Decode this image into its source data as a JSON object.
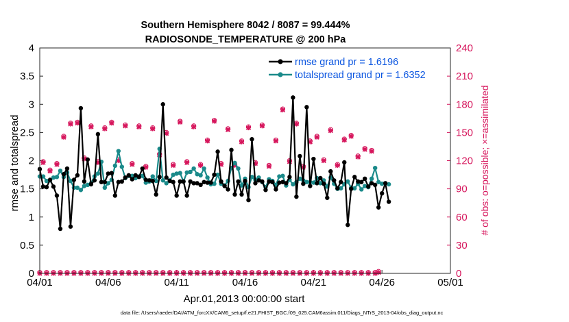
{
  "chart_data": {
    "type": "line",
    "title_line1": "Southern Hemisphere 8042 / 8087 = 99.444%",
    "title_line2": "RADIOSONDE_TEMPERATURE @ 200 hPa",
    "xlabel": "Apr.01,2013 00:00:00 start",
    "ylabel_left": "rmse and totalspread",
    "ylabel_right": "# of obs: o=possible; ×=assimilated",
    "x_range_days": [
      0,
      30
    ],
    "ylim_left": [
      0,
      4
    ],
    "ylim_right": [
      0,
      240
    ],
    "x_ticks": [
      {
        "day": 0,
        "label": "04/01"
      },
      {
        "day": 5,
        "label": "04/06"
      },
      {
        "day": 10,
        "label": "04/11"
      },
      {
        "day": 15,
        "label": "04/16"
      },
      {
        "day": 20,
        "label": "04/21"
      },
      {
        "day": 25,
        "label": "04/26"
      },
      {
        "day": 30,
        "label": "05/01"
      }
    ],
    "y_ticks_left": [
      "0",
      "0.5",
      "1",
      "1.5",
      "2",
      "2.5",
      "3",
      "3.5",
      "4"
    ],
    "y_ticks_right": [
      "0",
      "30",
      "60",
      "90",
      "120",
      "150",
      "180",
      "210",
      "240"
    ],
    "legend_position": "top-right",
    "series": [
      {
        "name": "rmse grand pr = 1.6196",
        "color": "#000000",
        "axis": "left",
        "x_step_days": 0.25,
        "x_start_day": 0,
        "values": [
          1.85,
          1.54,
          1.53,
          1.66,
          1.54,
          1.38,
          0.79,
          1.76,
          1.86,
          0.83,
          1.66,
          1.74,
          2.93,
          1.63,
          2.02,
          1.58,
          1.65,
          2.47,
          1.62,
          1.62,
          1.77,
          1.78,
          1.38,
          1.62,
          1.63,
          1.7,
          1.74,
          1.67,
          1.74,
          1.71,
          1.86,
          1.66,
          1.65,
          1.64,
          1.4,
          1.71,
          3.0,
          1.7,
          1.64,
          1.62,
          1.38,
          1.63,
          1.63,
          1.38,
          1.63,
          1.6,
          1.6,
          1.57,
          1.62,
          1.61,
          1.61,
          1.75,
          2.16,
          1.63,
          1.55,
          1.49,
          2.19,
          1.4,
          1.63,
          1.4,
          1.64,
          1.3,
          2.38,
          1.6,
          1.65,
          1.63,
          1.48,
          1.63,
          1.62,
          1.49,
          1.61,
          1.62,
          1.6,
          1.71,
          3.12,
          1.36,
          2.08,
          1.59,
          2.95,
          1.55,
          2.03,
          1.6,
          1.69,
          1.59,
          1.34,
          1.81,
          1.65,
          1.51,
          1.62,
          1.97,
          0.86,
          1.5,
          1.71,
          1.63,
          1.62,
          1.68,
          1.54,
          1.6,
          1.57,
          1.17,
          1.42,
          1.6,
          1.27
        ]
      },
      {
        "name": "totalspread grand pr = 1.6352",
        "color": "#1a8a8a",
        "axis": "left",
        "x_step_days": 0.25,
        "x_start_day": 0,
        "values": [
          1.72,
          1.72,
          1.64,
          1.65,
          1.7,
          1.71,
          1.82,
          1.71,
          1.79,
          1.64,
          1.52,
          1.52,
          1.48,
          1.55,
          1.57,
          1.6,
          1.72,
          1.77,
          1.98,
          1.52,
          1.6,
          1.66,
          1.91,
          2.17,
          1.89,
          1.69,
          1.73,
          1.73,
          1.69,
          1.72,
          1.73,
          1.61,
          1.63,
          1.72,
          1.64,
          2.21,
          1.65,
          1.6,
          1.65,
          1.75,
          1.77,
          1.78,
          1.63,
          1.79,
          1.8,
          1.86,
          1.76,
          1.74,
          1.86,
          1.7,
          1.58,
          1.59,
          1.75,
          1.59,
          1.56,
          1.64,
          1.87,
          1.96,
          1.86,
          1.56,
          1.68,
          1.53,
          1.71,
          1.66,
          1.7,
          1.62,
          1.53,
          1.67,
          1.64,
          1.57,
          1.72,
          1.73,
          1.56,
          1.66,
          1.58,
          1.62,
          1.68,
          1.65,
          1.62,
          1.62,
          1.61,
          1.69,
          1.6,
          1.65,
          1.54,
          1.7,
          1.59,
          1.5,
          1.51,
          1.58,
          1.63,
          1.52,
          1.51,
          1.59,
          1.49,
          1.55,
          1.53,
          1.68,
          1.87,
          1.62,
          1.59,
          1.6,
          1.58
        ]
      }
    ],
    "obs_possible": {
      "name": "possible",
      "marker": "o",
      "color": "#d6165c",
      "axis": "right",
      "x_step_days": 0.25,
      "x_start_day": 0,
      "values": [
        1,
        119,
        1,
        110,
        1,
        117,
        1,
        146,
        1,
        160,
        1,
        161,
        1,
        123,
        1,
        157,
        1,
        119,
        1,
        155,
        1,
        161,
        1,
        121,
        1,
        158,
        1,
        117,
        1,
        157,
        1,
        114,
        1,
        155,
        1,
        127,
        1,
        150,
        1,
        116,
        1,
        162,
        1,
        119,
        1,
        157,
        1,
        116,
        1,
        142,
        1,
        163,
        1,
        117,
        1,
        154,
        1,
        116,
        1,
        141,
        1,
        156,
        1,
        118,
        1,
        158,
        1,
        115,
        1,
        142,
        1,
        175,
        1,
        120,
        1,
        160,
        1,
        114,
        1,
        141,
        1,
        146,
        1,
        121,
        1,
        153,
        1,
        116,
        1,
        143,
        1,
        147,
        1,
        125,
        1,
        133,
        1,
        131,
        1,
        2
      ]
    },
    "obs_assimilated": {
      "name": "assimilated",
      "marker": "x",
      "color": "#d6165c",
      "axis": "right",
      "x_step_days": 0.25,
      "x_start_day": 0,
      "values": [
        0,
        118,
        0,
        109,
        0,
        116,
        0,
        145,
        0,
        159,
        0,
        160,
        0,
        122,
        0,
        156,
        0,
        118,
        0,
        154,
        0,
        160,
        0,
        120,
        0,
        157,
        0,
        116,
        0,
        156,
        0,
        113,
        0,
        154,
        0,
        126,
        0,
        149,
        0,
        115,
        0,
        161,
        0,
        118,
        0,
        156,
        0,
        115,
        0,
        141,
        0,
        162,
        0,
        116,
        0,
        153,
        0,
        115,
        0,
        140,
        0,
        155,
        0,
        117,
        0,
        157,
        0,
        114,
        0,
        141,
        0,
        174,
        0,
        119,
        0,
        159,
        0,
        113,
        0,
        140,
        0,
        145,
        0,
        120,
        0,
        152,
        0,
        115,
        0,
        142,
        0,
        146,
        0,
        124,
        0,
        132,
        0,
        130,
        0,
        1
      ]
    },
    "footnote": "data file: /Users/raeder/DAI/ATM_forcXX/CAM6_setup/f.e21.FHIST_BGC.f09_025.CAM6assim.011/Diags_NTrS_2013-04/obs_diag_output.nc"
  }
}
